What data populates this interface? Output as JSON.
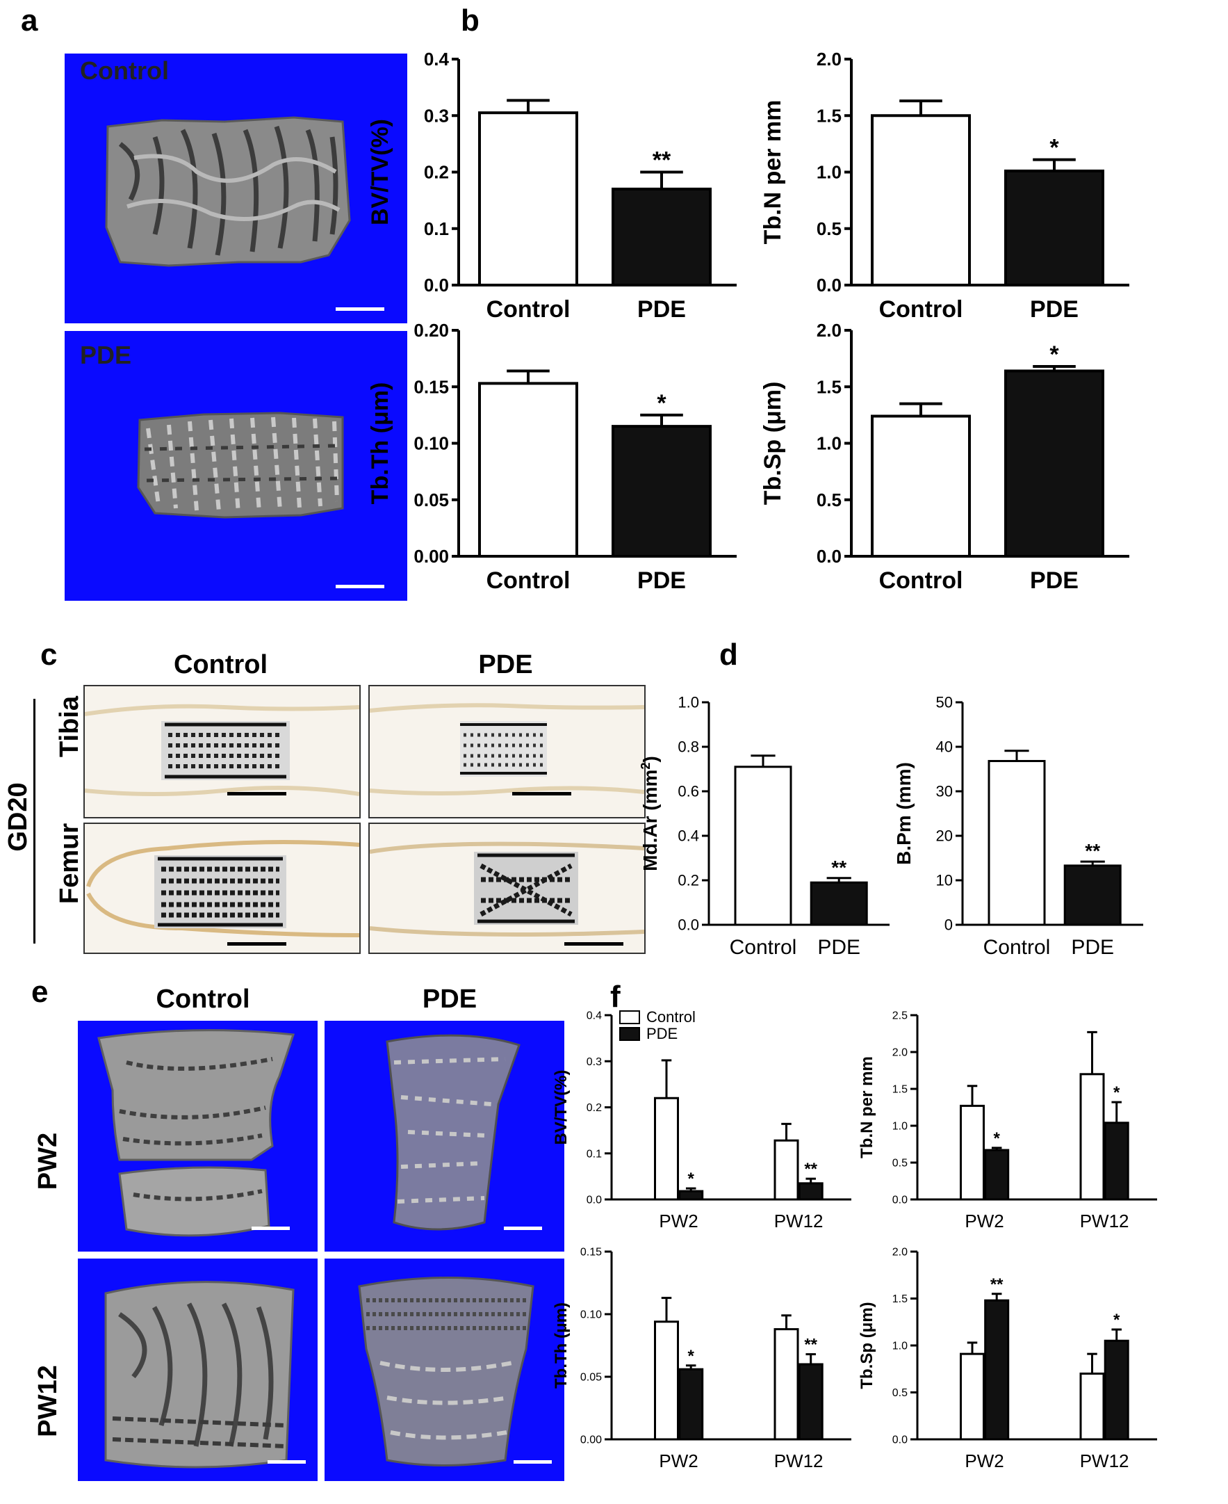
{
  "panels": {
    "a": {
      "label": "a",
      "images": [
        {
          "label": "Control"
        },
        {
          "label": "PDE"
        }
      ]
    },
    "b": {
      "label": "b"
    },
    "c": {
      "label": "c",
      "col_labels": [
        "Control",
        "PDE"
      ],
      "group_label": "GD20",
      "row_labels": [
        "Tibia",
        "Femur"
      ]
    },
    "d": {
      "label": "d"
    },
    "e": {
      "label": "e",
      "col_labels": [
        "Control",
        "PDE"
      ],
      "row_labels": [
        "PW2",
        "PW12"
      ]
    },
    "f": {
      "label": "f"
    }
  },
  "colors": {
    "image_background": "#0a0aff",
    "control_bar": "#ffffff",
    "pde_bar": "#111111",
    "bone_render": "#8c8c8c"
  },
  "chart_data": [
    {
      "id": "b1",
      "type": "bar",
      "ylabel": "BV/TV(%)",
      "categories": [
        "Control",
        "PDE"
      ],
      "values": [
        0.305,
        0.17
      ],
      "errors": [
        0.022,
        0.03
      ],
      "sig": [
        "",
        "**"
      ],
      "ylim": [
        0,
        0.4
      ],
      "yticks": [
        "0.0",
        "0.1",
        "0.2",
        "0.3",
        "0.4"
      ]
    },
    {
      "id": "b2",
      "type": "bar",
      "ylabel": "Tb.N per mm",
      "categories": [
        "Control",
        "PDE"
      ],
      "values": [
        1.5,
        1.01
      ],
      "errors": [
        0.13,
        0.1
      ],
      "sig": [
        "",
        "*"
      ],
      "ylim": [
        0,
        2.0
      ],
      "yticks": [
        "0.0",
        "0.5",
        "1.0",
        "1.5",
        "2.0"
      ]
    },
    {
      "id": "b3",
      "type": "bar",
      "ylabel": "Tb.Th (μm)",
      "categories": [
        "Control",
        "PDE"
      ],
      "values": [
        0.153,
        0.115
      ],
      "errors": [
        0.011,
        0.01
      ],
      "sig": [
        "",
        "*"
      ],
      "ylim": [
        0,
        0.2
      ],
      "yticks": [
        "0.00",
        "0.05",
        "0.10",
        "0.15",
        "0.20"
      ]
    },
    {
      "id": "b4",
      "type": "bar",
      "ylabel": "Tb.Sp (μm)",
      "categories": [
        "Control",
        "PDE"
      ],
      "values": [
        1.24,
        1.64
      ],
      "errors": [
        0.11,
        0.04
      ],
      "sig": [
        "",
        "*"
      ],
      "ylim": [
        0,
        2.0
      ],
      "yticks": [
        "0.0",
        "0.5",
        "1.0",
        "1.5",
        "2.0"
      ]
    },
    {
      "id": "d1",
      "type": "bar",
      "ylabel": "Md.Ar (mm",
      "ylabel_sup": "2",
      "ylabel_end": ")",
      "categories": [
        "Control",
        "PDE"
      ],
      "values": [
        0.71,
        0.19
      ],
      "errors": [
        0.05,
        0.02
      ],
      "sig": [
        "",
        "**"
      ],
      "ylim": [
        0,
        1.0
      ],
      "yticks": [
        "0.0",
        "0.2",
        "0.4",
        "0.6",
        "0.8",
        "1.0"
      ]
    },
    {
      "id": "d2",
      "type": "bar",
      "ylabel": "B.Pm (mm)",
      "categories": [
        "Control",
        "PDE"
      ],
      "values": [
        36.8,
        13.3
      ],
      "errors": [
        2.3,
        0.9
      ],
      "sig": [
        "",
        "**"
      ],
      "ylim": [
        0,
        50
      ],
      "yticks": [
        "0",
        "10",
        "20",
        "30",
        "40",
        "50"
      ]
    },
    {
      "id": "f1",
      "type": "bar",
      "ylabel": "BV/TV(%)",
      "categories": [
        "PW2",
        "PW12"
      ],
      "series": [
        {
          "name": "Control",
          "values": [
            0.22,
            0.128
          ],
          "errors": [
            0.082,
            0.036
          ],
          "sig": [
            "",
            ""
          ]
        },
        {
          "name": "PDE",
          "values": [
            0.018,
            0.035
          ],
          "errors": [
            0.006,
            0.01
          ],
          "sig": [
            "*",
            "**"
          ]
        }
      ],
      "legend": "top-left",
      "ylim": [
        0,
        0.4
      ],
      "yticks": [
        "0.0",
        "0.1",
        "0.2",
        "0.3",
        "0.4"
      ]
    },
    {
      "id": "f2",
      "type": "bar",
      "ylabel": "Tb.N per mm",
      "categories": [
        "PW2",
        "PW12"
      ],
      "series": [
        {
          "name": "Control",
          "values": [
            1.27,
            1.7
          ],
          "errors": [
            0.27,
            0.57
          ],
          "sig": [
            "",
            ""
          ]
        },
        {
          "name": "PDE",
          "values": [
            0.67,
            1.04
          ],
          "errors": [
            0.03,
            0.28
          ],
          "sig": [
            "*",
            "*"
          ]
        }
      ],
      "ylim": [
        0,
        2.5
      ],
      "yticks": [
        "0.0",
        "0.5",
        "1.0",
        "1.5",
        "2.0",
        "2.5"
      ]
    },
    {
      "id": "f3",
      "type": "bar",
      "ylabel": "Tb.Th (μm)",
      "categories": [
        "PW2",
        "PW12"
      ],
      "series": [
        {
          "name": "Control",
          "values": [
            0.094,
            0.088
          ],
          "errors": [
            0.019,
            0.011
          ],
          "sig": [
            "",
            ""
          ]
        },
        {
          "name": "PDE",
          "values": [
            0.056,
            0.06
          ],
          "errors": [
            0.003,
            0.008
          ],
          "sig": [
            "*",
            "**"
          ]
        }
      ],
      "ylim": [
        0,
        0.15
      ],
      "yticks": [
        "0.00",
        "0.05",
        "0.10",
        "0.15"
      ]
    },
    {
      "id": "f4",
      "type": "bar",
      "ylabel": "Tb.Sp (μm)",
      "categories": [
        "PW2",
        "PW12"
      ],
      "series": [
        {
          "name": "Control",
          "values": [
            0.91,
            0.7
          ],
          "errors": [
            0.12,
            0.21
          ],
          "sig": [
            "",
            ""
          ]
        },
        {
          "name": "PDE",
          "values": [
            1.48,
            1.05
          ],
          "errors": [
            0.07,
            0.12
          ],
          "sig": [
            "**",
            "*"
          ]
        }
      ],
      "ylim": [
        0,
        2.0
      ],
      "yticks": [
        "0.0",
        "0.5",
        "1.0",
        "1.5",
        "2.0"
      ]
    }
  ]
}
